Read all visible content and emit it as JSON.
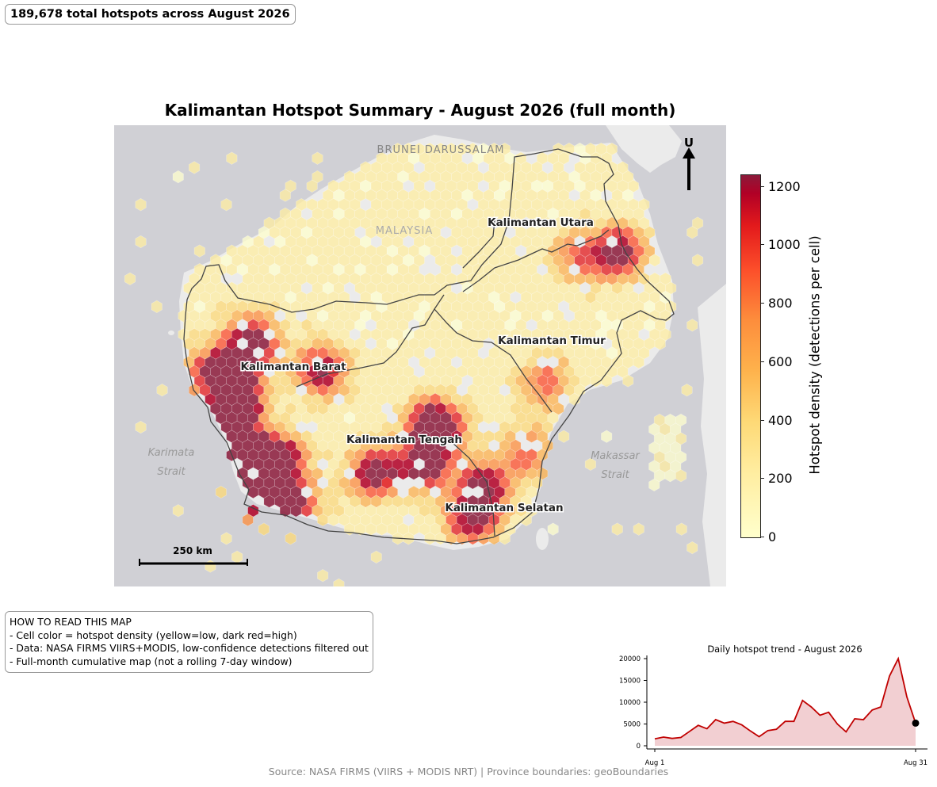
{
  "header": {
    "total_hotspots_text": "189,678 total hotspots across August 2026"
  },
  "map": {
    "title": "Kalimantan Hotspot Summary - August 2026 (full month)",
    "background_labels": {
      "brunei": "BRUNEI DARUSSALAM",
      "malaysia": "MALAYSIA",
      "karimata_1": "Karimata",
      "karimata_2": "Strait",
      "makassar_1": "Makassar",
      "makassar_2": "Strait"
    },
    "province_labels": {
      "utara": "Kalimantan Utara",
      "timur": "Kalimantan Timur",
      "barat": "Kalimantan Barat",
      "tengah": "Kalimantan Tengah",
      "selatan": "Kalimantan Selatan"
    },
    "north_arrow_label": "U",
    "scale_bar_label": "250 km",
    "colors": {
      "land": "#ebebeb",
      "sea": "#d0d0d5",
      "boundary": "#444444"
    }
  },
  "colorbar": {
    "label": "Hotspot density (detections per cell)",
    "min": 0,
    "max": 1240,
    "ticks": [
      "0",
      "200",
      "400",
      "600",
      "800",
      "1000",
      "1200"
    ],
    "colors": [
      "#ffffcc",
      "#ffeda0",
      "#fed976",
      "#feb24c",
      "#fd8d3c",
      "#fc4e2a",
      "#e31a1c",
      "#b10026",
      "#8b1a3a"
    ]
  },
  "how_to_read": {
    "heading": "HOW TO READ THIS MAP",
    "lines": [
      "- Cell color = hotspot density (yellow=low, dark red=high)",
      "- Data: NASA FIRMS VIIRS+MODIS, low-confidence detections filtered out",
      "- Full-month cumulative map (not a rolling 7-day window)"
    ]
  },
  "chart_data": {
    "type": "area",
    "title": "Daily hotspot trend - August 2026",
    "x": [
      1,
      2,
      3,
      4,
      5,
      6,
      7,
      8,
      9,
      10,
      11,
      12,
      13,
      14,
      15,
      16,
      17,
      18,
      19,
      20,
      21,
      22,
      23,
      24,
      25,
      26,
      27,
      28,
      29,
      30,
      31
    ],
    "series": [
      {
        "values": [
          1600,
          2000,
          1700,
          1900,
          3300,
          4700,
          3900,
          6000,
          5200,
          5600,
          4800,
          3400,
          2100,
          3500,
          3800,
          5600,
          5600,
          10400,
          8900,
          7000,
          7700,
          5000,
          3200,
          6200,
          6000,
          8200,
          8900,
          16000,
          20000,
          11200,
          5200
        ]
      }
    ],
    "xtick_labels": [
      "Aug 1",
      "Aug 31"
    ],
    "ytick_labels": [
      "0",
      "5000",
      "10000",
      "15000",
      "20000"
    ],
    "ylim": [
      0,
      21000
    ],
    "colors": {
      "line": "#c00000",
      "fill": "#f2cfd2",
      "endpoint": "#000000"
    }
  },
  "footer": {
    "source": "Source: NASA FIRMS (VIIRS + MODIS NRT) | Province boundaries: geoBoundaries"
  }
}
